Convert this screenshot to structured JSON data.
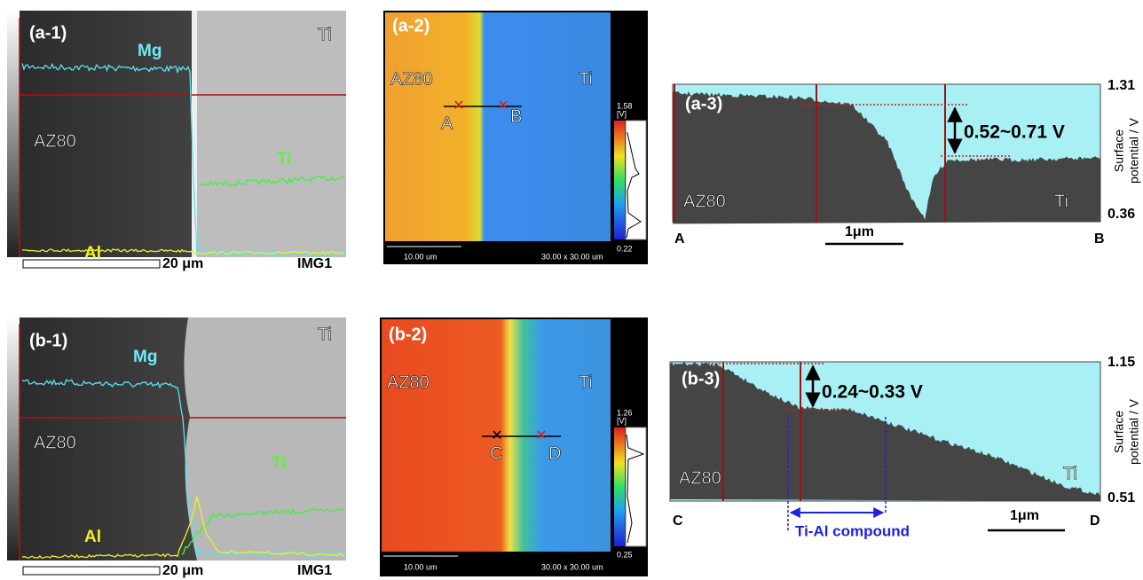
{
  "panels": {
    "a1": {
      "label": "(a-1)",
      "metal": "Ti",
      "mg": "Mg",
      "alloy": "AZ80",
      "ti": "Ti",
      "al": "Al",
      "scale": "20 μm",
      "img": "IMG1"
    },
    "a2": {
      "label": "(a-2)",
      "alloy": "AZ80",
      "metal": "Ti",
      "start": "A",
      "end": "B",
      "cmax": "1.58",
      "unit": "[V]",
      "cmin": "0.22",
      "scale": "10.00 um",
      "size": "30.00 x 30.00 um"
    },
    "a3": {
      "label": "(a-3)",
      "alloy": "AZ80",
      "metal": "Ti",
      "diff": "0.52~0.71 V",
      "ymax": "1.31",
      "ymin": "0.36",
      "ylabel1": "Surface",
      "ylabel2": "potential / V",
      "start": "A",
      "end": "B",
      "scale": "1μm"
    },
    "b1": {
      "label": "(b-1)",
      "metal": "Ti",
      "mg": "Mg",
      "alloy": "AZ80",
      "ti": "Ti",
      "al": "Al",
      "scale": "20 μm",
      "img": "IMG1"
    },
    "b2": {
      "label": "(b-2)",
      "alloy": "AZ80",
      "metal": "Ti",
      "start": "C",
      "end": "D",
      "cmax": "1.26",
      "unit": "[V]",
      "cmin": "0.25",
      "scale": "10.00 um",
      "size": "30.00 x 30.00 um"
    },
    "b3": {
      "label": "(b-3)",
      "alloy": "AZ80",
      "metal": "Ti",
      "diff": "0.24~0.33 V",
      "compound": "Ti-Al compound",
      "ymax": "1.15",
      "ymin": "0.51",
      "ylabel1": "Surface",
      "ylabel2": "potential / V",
      "start": "C",
      "end": "D",
      "scale": "1μm"
    }
  }
}
